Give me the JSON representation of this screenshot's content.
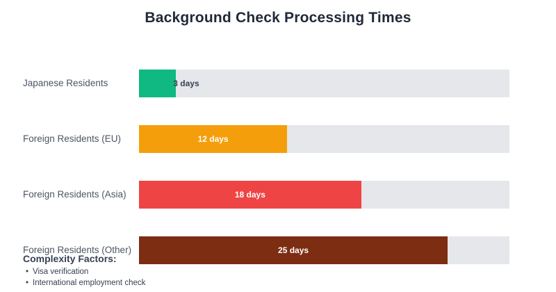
{
  "title": "Background Check Processing Times",
  "chart_data": {
    "type": "bar",
    "orientation": "horizontal",
    "title": "Background Check Processing Times",
    "categories": [
      "Japanese Residents",
      "Foreign Residents (EU)",
      "Foreign Residents (Asia)",
      "Foreign Residents (Other)"
    ],
    "values": [
      3,
      12,
      18,
      25
    ],
    "value_labels": [
      "3 days",
      "12 days",
      "18 days",
      "25 days"
    ],
    "unit": "days",
    "colors": [
      "#10b981",
      "#f59e0b",
      "#ef4444",
      "#7c2d12"
    ],
    "track_color": "#e5e7eb",
    "label_color": "#4b5563",
    "title_color": "#1f2937",
    "xlim": [
      0,
      30
    ],
    "grid": false,
    "legend": false,
    "axis_ticks_visible": false
  },
  "annotation": {
    "heading": "Complexity Factors:",
    "bullets": [
      "Visa verification",
      "International employment check"
    ]
  },
  "icons": {
    "bullet": "•"
  }
}
